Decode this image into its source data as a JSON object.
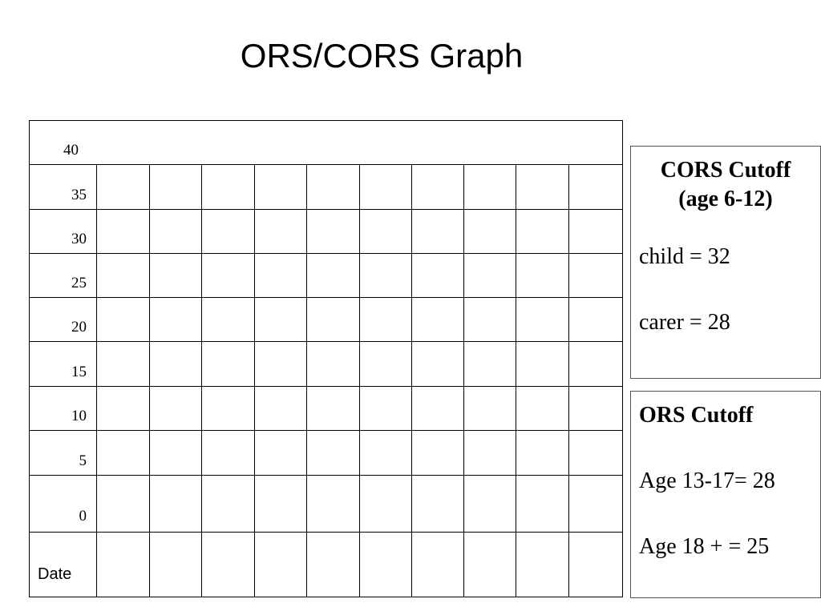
{
  "title": "ORS/CORS Graph",
  "grid": {
    "y_labels": [
      "40",
      "35",
      "30",
      "25",
      "20",
      "15",
      "10",
      "5",
      "0"
    ],
    "date_label": "Date"
  },
  "cors_box": {
    "heading_line1": "CORS Cutoff",
    "heading_line2": "(age 6-12)",
    "child": "child = 32",
    "carer": "carer = 28"
  },
  "ors_box": {
    "heading": "ORS Cutoff",
    "age_13_17": "Age 13-17= 28",
    "age_18": "Age 18 +  = 25"
  }
}
